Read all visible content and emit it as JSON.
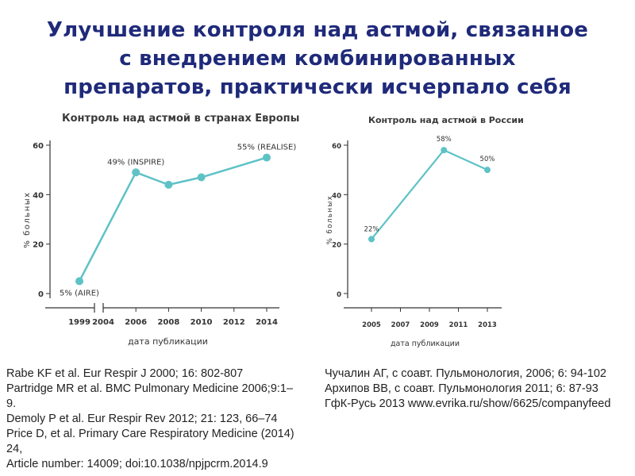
{
  "title": "Улучшение контроля над астмой, связанное\nс внедрением комбинированных\nпрепаратов, практически исчерпало себя",
  "chart_data": [
    {
      "type": "line",
      "title": "Контроль над астмой в странах Европы",
      "xlabel": "дата публикации",
      "ylabel": "% больных",
      "ylim": [
        0,
        60
      ],
      "yticks": [
        0,
        20,
        40,
        60
      ],
      "xticks": [
        "1999",
        "2004",
        "2006",
        "2008",
        "2010",
        "2012",
        "2014"
      ],
      "axis_break": true,
      "color": "#5ec2c6",
      "series": [
        {
          "x": [
            1999,
            2006,
            2008,
            2010,
            2014
          ],
          "y": [
            5,
            49,
            44,
            47,
            55
          ]
        }
      ],
      "annotations": [
        {
          "x": 1999,
          "y": 5,
          "text": "5% (AIRE)"
        },
        {
          "x": 2006,
          "y": 49,
          "text": "49% (INSPIRE)"
        },
        {
          "x": 2014,
          "y": 55,
          "text": "55% (REALISE)"
        }
      ]
    },
    {
      "type": "line",
      "title": "Контроль над астмой в России",
      "xlabel": "дата публикации",
      "ylabel": "% больных",
      "ylim": [
        0,
        60
      ],
      "yticks": [
        0,
        20,
        40,
        60
      ],
      "xticks": [
        "2005",
        "2007",
        "2009",
        "2011",
        "2013"
      ],
      "color": "#5ec2c6",
      "series": [
        {
          "x": [
            2005,
            2010,
            2013
          ],
          "y": [
            22,
            58,
            50
          ]
        }
      ],
      "annotations": [
        {
          "x": 2005,
          "y": 22,
          "text": "22%"
        },
        {
          "x": 2010,
          "y": 58,
          "text": "58%"
        },
        {
          "x": 2013,
          "y": 50,
          "text": "50%"
        }
      ]
    }
  ],
  "references_left": [
    "Rabe KF et al. Eur Respir J 2000; 16: 802-807",
    "Partridge MR et al. BMC Pulmonary Medicine 2006;9:1–\n9.",
    "Demoly P et al. Eur Respir Rev 2012; 21: 123, 66–74",
    "Price D, et al. Primary Care Respiratory Medicine (2014)\n24,",
    "Article number: 14009; doi:10.1038/npjpcrm.2014.9"
  ],
  "references_right": [
    "Чучалин  АГ, с соавт. Пульмонология, 2006; 6: 94-102",
    "Архипов ВВ, с соавт. Пульмонология 2011; 6: 87-93",
    "ГфК-Русь 2013 www.evrika.ru/show/6625/companyfeed"
  ]
}
